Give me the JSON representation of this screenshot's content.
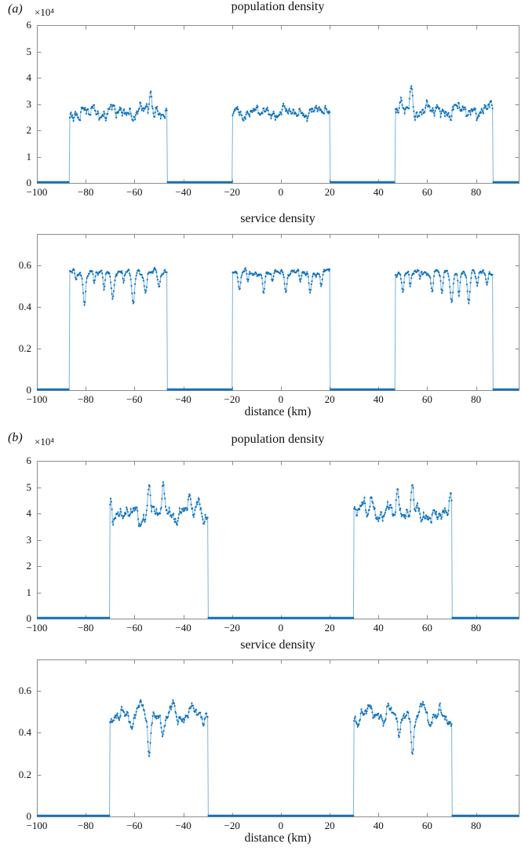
{
  "figure": {
    "background": "#ffffff",
    "axis_color": "#8c8c8c",
    "text_color": "#111111",
    "series_color": "#0e72bd",
    "panels": [
      {
        "label": "(a)"
      },
      {
        "label": "(b)"
      }
    ]
  },
  "chart_data": [
    {
      "id": "a-population",
      "panel": "a",
      "type": "line",
      "title": "population density",
      "y_exponent_label": "×10⁴",
      "xlabel": null,
      "xlim": [
        -100,
        97.5
      ],
      "ylim": [
        0,
        6
      ],
      "xticks": [
        -100,
        -80,
        -60,
        -40,
        -20,
        0,
        20,
        40,
        60,
        80
      ],
      "xtick_labels": [
        "−100",
        "−80",
        "−60",
        "−40",
        "−20",
        "0",
        "20",
        "40",
        "60",
        "80"
      ],
      "yticks": [
        0,
        1,
        2,
        3,
        4,
        5,
        6
      ],
      "ytick_labels": [
        "0",
        "1",
        "2",
        "3",
        "4",
        "5",
        "6"
      ],
      "grid": false,
      "legend": null,
      "seed": 7,
      "baseline_value": 0,
      "blocks": [
        {
          "x0": -86.7,
          "x1": -46.7,
          "base": 2.7,
          "amp": 0.3,
          "features": [
            {
              "x": -86.2,
              "dy": 0.25,
              "w": 0.4
            },
            {
              "x": -83.0,
              "dy": -0.3,
              "w": 0.9
            },
            {
              "x": -53.3,
              "dy": 0.85,
              "w": 0.7
            }
          ]
        },
        {
          "x0": -19.9,
          "x1": 20.1,
          "base": 2.68,
          "amp": 0.24,
          "features": [
            {
              "x": 18.0,
              "dy": 0.3,
              "w": 0.8
            }
          ]
        },
        {
          "x0": 46.8,
          "x1": 86.8,
          "base": 2.75,
          "amp": 0.3,
          "features": [
            {
              "x": 49.5,
              "dy": 0.3,
              "w": 0.6
            },
            {
              "x": 53.6,
              "dy": 0.85,
              "w": 0.7
            }
          ]
        }
      ]
    },
    {
      "id": "a-service",
      "panel": "a",
      "type": "line",
      "title": "service density",
      "y_exponent_label": null,
      "xlabel": "distance (km)",
      "xlim": [
        -100,
        97.5
      ],
      "ylim": [
        0,
        0.75
      ],
      "xticks": [
        -100,
        -80,
        -60,
        -40,
        -20,
        0,
        20,
        40,
        60,
        80
      ],
      "xtick_labels": [
        "−100",
        "−80",
        "−60",
        "−40",
        "−20",
        "0",
        "20",
        "40",
        "60",
        "80"
      ],
      "yticks": [
        0,
        0.2,
        0.4,
        0.6
      ],
      "ytick_labels": [
        "0",
        "0.2",
        "0.4",
        "0.6"
      ],
      "grid": false,
      "legend": null,
      "seed": 13,
      "baseline_value": 0,
      "blocks": [
        {
          "x0": -86.7,
          "x1": -46.7,
          "base": 0.565,
          "amp": 0.016,
          "features": [
            {
              "x": -84.0,
              "dy": -0.05,
              "w": 0.5
            },
            {
              "x": -80.5,
              "dy": -0.15,
              "w": 0.7
            },
            {
              "x": -76.5,
              "dy": -0.05,
              "w": 0.5
            },
            {
              "x": -72.5,
              "dy": -0.08,
              "w": 0.6
            },
            {
              "x": -69.0,
              "dy": -0.12,
              "w": 0.7
            },
            {
              "x": -64.5,
              "dy": -0.05,
              "w": 0.5
            },
            {
              "x": -60.5,
              "dy": -0.15,
              "w": 0.8
            },
            {
              "x": -55.5,
              "dy": -0.09,
              "w": 0.7
            },
            {
              "x": -50.0,
              "dy": -0.07,
              "w": 0.7
            }
          ]
        },
        {
          "x0": -19.9,
          "x1": 20.1,
          "base": 0.565,
          "amp": 0.016,
          "features": [
            {
              "x": -17.0,
              "dy": -0.09,
              "w": 0.6
            },
            {
              "x": -13.5,
              "dy": -0.05,
              "w": 0.5
            },
            {
              "x": -7.0,
              "dy": -0.1,
              "w": 0.7
            },
            {
              "x": -3.5,
              "dy": -0.05,
              "w": 0.5
            },
            {
              "x": 2.0,
              "dy": -0.08,
              "w": 0.6
            },
            {
              "x": 8.0,
              "dy": -0.05,
              "w": 0.5
            },
            {
              "x": 12.0,
              "dy": -0.1,
              "w": 0.7
            },
            {
              "x": 16.5,
              "dy": -0.06,
              "w": 0.5
            }
          ]
        },
        {
          "x0": 46.8,
          "x1": 86.8,
          "base": 0.565,
          "amp": 0.016,
          "features": [
            {
              "x": 50.0,
              "dy": -0.09,
              "w": 0.6
            },
            {
              "x": 53.0,
              "dy": -0.07,
              "w": 0.5
            },
            {
              "x": 57.0,
              "dy": -0.04,
              "w": 0.4
            },
            {
              "x": 62.0,
              "dy": -0.08,
              "w": 0.6
            },
            {
              "x": 66.0,
              "dy": -0.1,
              "w": 0.6
            },
            {
              "x": 70.0,
              "dy": -0.15,
              "w": 0.8
            },
            {
              "x": 73.0,
              "dy": -0.09,
              "w": 0.5
            },
            {
              "x": 77.0,
              "dy": -0.15,
              "w": 0.8
            },
            {
              "x": 80.5,
              "dy": -0.06,
              "w": 0.5
            },
            {
              "x": 84.5,
              "dy": -0.05,
              "w": 0.5
            }
          ]
        }
      ]
    },
    {
      "id": "b-population",
      "panel": "b",
      "type": "line",
      "title": "population density",
      "y_exponent_label": "×10⁴",
      "xlabel": null,
      "xlim": [
        -100,
        97.5
      ],
      "ylim": [
        0,
        6
      ],
      "xticks": [
        -100,
        -80,
        -60,
        -40,
        -20,
        0,
        20,
        40,
        60,
        80
      ],
      "xtick_labels": [
        "−100",
        "−80",
        "−60",
        "−40",
        "−20",
        "0",
        "20",
        "40",
        "60",
        "80"
      ],
      "yticks": [
        0,
        1,
        2,
        3,
        4,
        5,
        6
      ],
      "ytick_labels": [
        "0",
        "1",
        "2",
        "3",
        "4",
        "5",
        "6"
      ],
      "grid": false,
      "legend": null,
      "seed": 21,
      "baseline_value": 0,
      "blocks": [
        {
          "x0": -70.0,
          "x1": -30.0,
          "base": 4.0,
          "amp": 0.32,
          "features": [
            {
              "x": -69.6,
              "dy": 0.55,
              "w": 0.45
            },
            {
              "x": -58.0,
              "dy": -0.35,
              "w": 1.2
            },
            {
              "x": -54.0,
              "dy": 1.3,
              "w": 0.7
            },
            {
              "x": -48.2,
              "dy": 0.85,
              "w": 0.8
            },
            {
              "x": -37.5,
              "dy": 0.5,
              "w": 1.0
            },
            {
              "x": -34.0,
              "dy": 0.45,
              "w": 0.9
            }
          ]
        },
        {
          "x0": 30.0,
          "x1": 70.0,
          "base": 4.0,
          "amp": 0.32,
          "features": [
            {
              "x": 69.6,
              "dy": 0.55,
              "w": 0.45
            },
            {
              "x": 58.0,
              "dy": -0.35,
              "w": 1.2
            },
            {
              "x": 53.8,
              "dy": 1.3,
              "w": 0.7
            },
            {
              "x": 47.9,
              "dy": 0.85,
              "w": 0.8
            },
            {
              "x": 37.5,
              "dy": 0.5,
              "w": 1.0
            },
            {
              "x": 34.0,
              "dy": 0.45,
              "w": 0.9
            }
          ]
        }
      ]
    },
    {
      "id": "b-service",
      "panel": "b",
      "type": "line",
      "title": "service density",
      "y_exponent_label": null,
      "xlabel": "distance (km)",
      "xlim": [
        -100,
        97.5
      ],
      "ylim": [
        0,
        0.75
      ],
      "xticks": [
        -100,
        -80,
        -60,
        -40,
        -20,
        0,
        20,
        40,
        60,
        80
      ],
      "xtick_labels": [
        "−100",
        "−80",
        "−60",
        "−40",
        "−20",
        "0",
        "20",
        "40",
        "60",
        "80"
      ],
      "yticks": [
        0,
        0.2,
        0.4,
        0.6
      ],
      "ytick_labels": [
        "0",
        "0.2",
        "0.4",
        "0.6"
      ],
      "grid": false,
      "legend": null,
      "seed": 29,
      "baseline_value": 0,
      "blocks": [
        {
          "x0": -70.0,
          "x1": -30.0,
          "base": 0.48,
          "amp": 0.032,
          "features": [
            {
              "x": -69.8,
              "dy": -0.06,
              "w": 0.9
            },
            {
              "x": -65.0,
              "dy": 0.05,
              "w": 0.8
            },
            {
              "x": -61.0,
              "dy": -0.05,
              "w": 0.7
            },
            {
              "x": -57.5,
              "dy": 0.06,
              "w": 0.9
            },
            {
              "x": -54.0,
              "dy": -0.165,
              "w": 0.7
            },
            {
              "x": -48.3,
              "dy": -0.105,
              "w": 0.8
            },
            {
              "x": -44.0,
              "dy": 0.05,
              "w": 1.0
            },
            {
              "x": -36.0,
              "dy": 0.05,
              "w": 1.0
            },
            {
              "x": -32.0,
              "dy": -0.04,
              "w": 0.7
            }
          ]
        },
        {
          "x0": 30.0,
          "x1": 70.0,
          "base": 0.48,
          "amp": 0.032,
          "features": [
            {
              "x": 69.8,
              "dy": -0.06,
              "w": 0.9
            },
            {
              "x": 65.0,
              "dy": 0.05,
              "w": 0.8
            },
            {
              "x": 61.0,
              "dy": -0.05,
              "w": 0.7
            },
            {
              "x": 57.5,
              "dy": 0.06,
              "w": 0.9
            },
            {
              "x": 54.0,
              "dy": -0.165,
              "w": 0.7
            },
            {
              "x": 48.3,
              "dy": -0.105,
              "w": 0.8
            },
            {
              "x": 44.0,
              "dy": 0.05,
              "w": 1.0
            },
            {
              "x": 36.0,
              "dy": 0.05,
              "w": 1.0
            },
            {
              "x": 32.0,
              "dy": -0.04,
              "w": 0.7
            }
          ]
        }
      ]
    }
  ]
}
